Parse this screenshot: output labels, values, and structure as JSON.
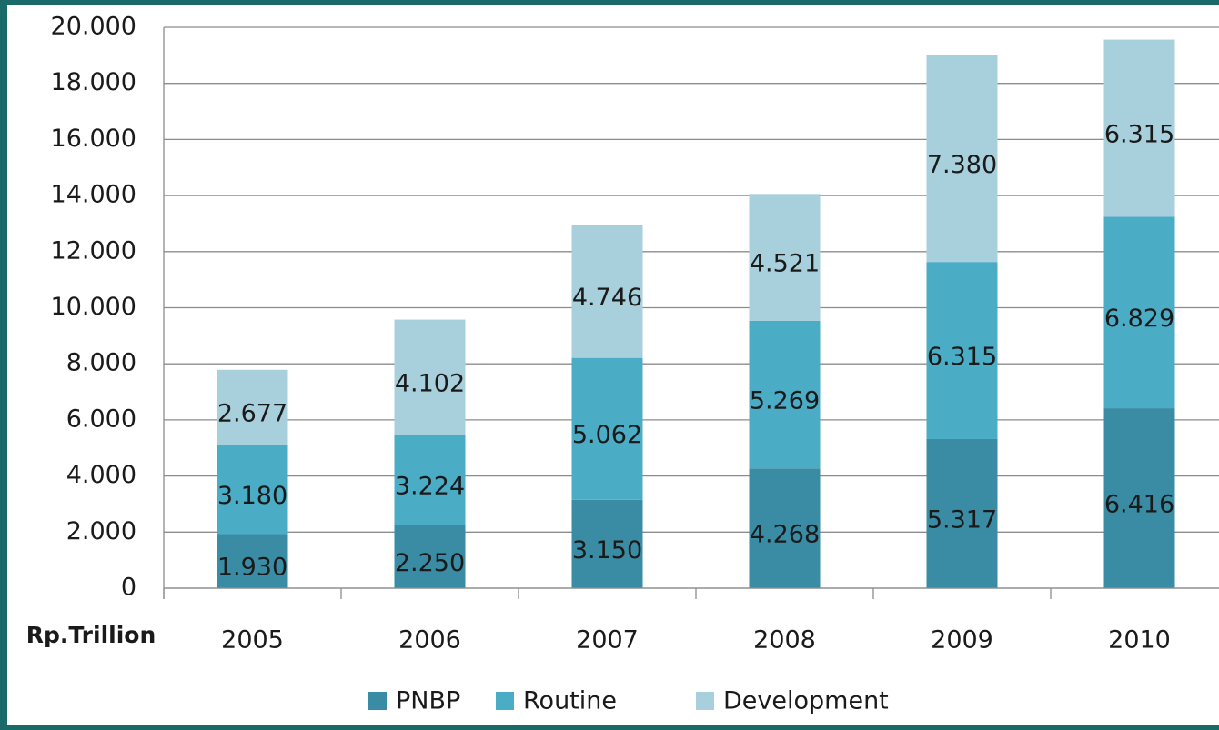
{
  "chart_data": {
    "type": "stacked_bar",
    "x_label": "Rp.Trillion",
    "categories": [
      "2005",
      "2006",
      "2007",
      "2008",
      "2009",
      "2010"
    ],
    "series": [
      {
        "name": "PNBP",
        "color": "#3a8ca5",
        "values": [
          1930,
          2250,
          3150,
          4268,
          5317,
          6416
        ],
        "value_labels": [
          "1.930",
          "2.250",
          "3.150",
          "4.268",
          "5.317",
          "6.416"
        ]
      },
      {
        "name": "Routine",
        "color": "#4bacc6",
        "values": [
          3180,
          3224,
          5062,
          5269,
          6315,
          6829
        ],
        "value_labels": [
          "3.180",
          "3.224",
          "5.062",
          "5.269",
          "6.315",
          "6.829"
        ]
      },
      {
        "name": "Development",
        "color": "#a8cfdc",
        "values": [
          2677,
          4102,
          4746,
          4521,
          7380,
          6315
        ],
        "value_labels": [
          "2.677",
          "4.102",
          "4.746",
          "4.521",
          "7.380",
          "6.315"
        ]
      }
    ],
    "ylim": [
      0,
      20000
    ],
    "yticks": [
      0,
      {
        "value": 2000,
        "label": "2.000"
      },
      {
        "value": 4000,
        "label": "4.000"
      },
      {
        "value": 6000,
        "label": "6.000"
      },
      {
        "value": 8000,
        "label": "8.000"
      },
      {
        "value": 10000,
        "label": "10.000"
      },
      {
        "value": 12000,
        "label": "12.000"
      },
      {
        "value": 14000,
        "label": "14.000"
      },
      {
        "value": 16000,
        "label": "16.000"
      },
      {
        "value": 18000,
        "label": "18.000"
      },
      {
        "value": 20000,
        "label": "20.000"
      }
    ],
    "grid": true,
    "legend": "bottom"
  }
}
